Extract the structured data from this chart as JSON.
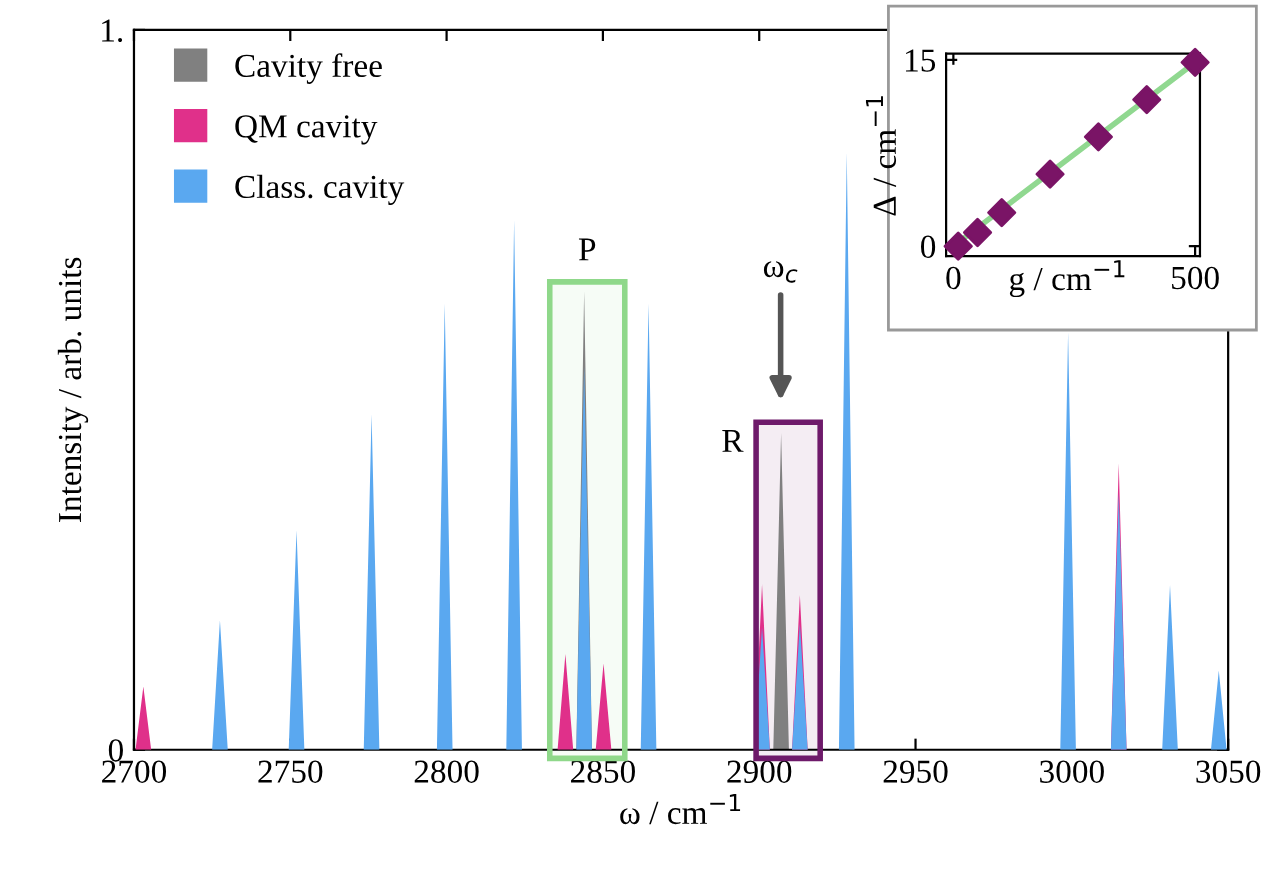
{
  "chart_data": [
    {
      "type": "area",
      "xlabel": "ω / cm$^{−1}$",
      "ylabel": "Intensity / arb. units",
      "xlim": [
        2700,
        3050
      ],
      "xticks": [
        2700,
        2750,
        2800,
        2850,
        2900,
        2950,
        3000,
        3050
      ],
      "ylim": [
        0,
        1
      ],
      "yticks": [
        0,
        {
          "value": 1,
          "label": "1."
        }
      ],
      "grid": false,
      "legend": "top left",
      "annotations": [
        "ω$_{c}$"
      ],
      "bands": [
        {
          "axis": "x",
          "from": 2833,
          "to": 2857,
          "label": "P",
          "color": "#8fd88a"
        },
        {
          "axis": "x",
          "from": 2899,
          "to": 2919.5,
          "label": "R",
          "color": "#6e1a6a"
        }
      ],
      "series": [
        {
          "name": "Cavity free",
          "color": "#808080",
          "x": [
            2700,
            2841.5,
            2844,
            2846.5,
            2904.5,
            2907,
            2909.5,
            3050
          ],
          "values": [
            0,
            0,
            0.637,
            0,
            0,
            0.44,
            0,
            0
          ]
        },
        {
          "name": "QM cavity",
          "color": "#e0308a",
          "x": [
            2700,
            2700.5,
            2703,
            2705.5,
            2835.5,
            2838,
            2840.5,
            2847.7,
            2850.2,
            2852.7,
            2898.4,
            2900.9,
            2903.4,
            2910.5,
            2913,
            2915.5,
            3012.5,
            3015,
            3017.5,
            3050
          ],
          "values": [
            0,
            0,
            0.088,
            0,
            0,
            0.133,
            0,
            0,
            0.12,
            0,
            0,
            0.23,
            0,
            0,
            0.215,
            0,
            0,
            0.398,
            0,
            0
          ]
        },
        {
          "name": "Class. cavity",
          "color": "#5aa8f0",
          "x": [
            2700,
            2725,
            2727.5,
            2730,
            2749.5,
            2752,
            2754.5,
            2773.5,
            2776,
            2778.5,
            2796.9,
            2799.4,
            2801.9,
            2819.1,
            2821.6,
            2824.1,
            2841.5,
            2844,
            2846.5,
            2862.1,
            2864.6,
            2867.1,
            2898.4,
            2900.9,
            2903.4,
            2910.5,
            2913,
            2915.5,
            2925.5,
            2928,
            2930.5,
            2946,
            2964.7,
            2982.3,
            2996.3,
            2998.8,
            3001.3,
            3012.5,
            3015,
            3017.5,
            3028.9,
            3031.4,
            3033.9,
            3044.5,
            3047,
            3049.5,
            3050
          ],
          "values": [
            0,
            0,
            0.18,
            0,
            0,
            0.305,
            0,
            0,
            0.466,
            0,
            0,
            0.62,
            0,
            0,
            0.736,
            0,
            0,
            0.532,
            0,
            0,
            0.62,
            0,
            0,
            0.17,
            0,
            0,
            0.175,
            0,
            0,
            0.83,
            0,
            null,
            null,
            null,
            0,
            0.58,
            0,
            0,
            0.356,
            0,
            0,
            0.229,
            0,
            0,
            0.11,
            0,
            0
          ]
        }
      ]
    },
    {
      "type": "scatter",
      "xlabel": "g / cm$^{−1}$",
      "ylabel": "Δ / cm$^{−1}$",
      "xlim": [
        -15,
        510
      ],
      "xticks": [
        0,
        500
      ],
      "ylim": [
        -0.8,
        15.5
      ],
      "yticks": [
        0,
        15
      ],
      "grid": false,
      "series": [
        {
          "type": "line",
          "color": "#90d890",
          "x": [
            0,
            500
          ],
          "values": [
            0,
            14.8
          ]
        },
        {
          "color": "#7a1466",
          "marker": "diamond",
          "x": [
            10,
            50,
            100,
            200,
            300,
            400,
            500
          ],
          "values": [
            0,
            1.1,
            2.7,
            5.8,
            8.8,
            11.8,
            14.8
          ]
        }
      ]
    }
  ]
}
